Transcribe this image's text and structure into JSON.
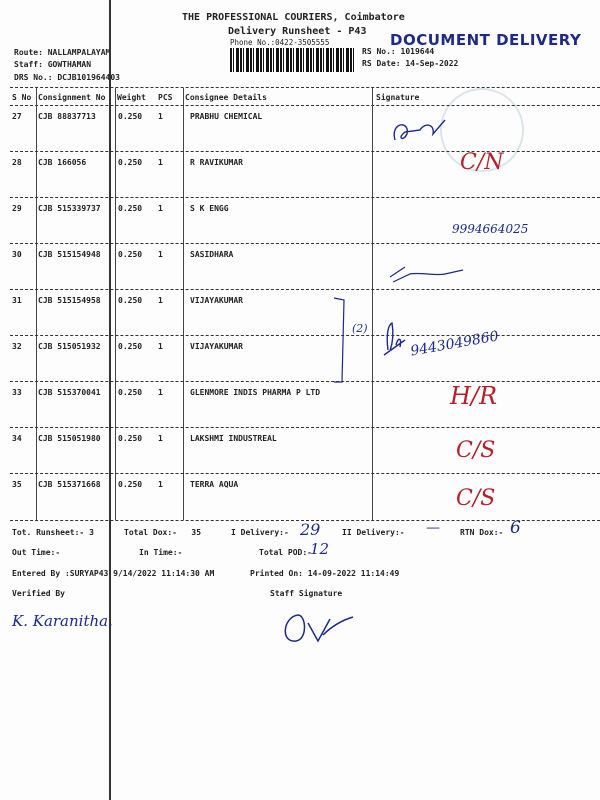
{
  "header": {
    "company": "THE PROFESSIONAL COURIERS, Coimbatore",
    "title": "Delivery Runsheet - P43",
    "phone": "Phone No.:0422-3505555",
    "stamp": "DOCUMENT DELIVERY",
    "rs_no": "RS No.: 1019644",
    "rs_date": "RS Date: 14-Sep-2022",
    "route": "Route: NALLAMPALAYAM",
    "staff": "Staff: GOWTHAMAN",
    "drs_no": "DRS No.: DCJB101964403"
  },
  "columns": [
    "S No",
    "Consignment No",
    "Weight",
    "PCS",
    "Consignee Details",
    "Signature"
  ],
  "rows": [
    {
      "sno": "27",
      "cn": "CJB 88837713",
      "weight": "0.250",
      "pcs": "1",
      "consignee": "PRABHU CHEMICAL",
      "note": ""
    },
    {
      "sno": "28",
      "cn": "CJB 166056",
      "weight": "0.250",
      "pcs": "1",
      "consignee": "R RAVIKUMAR",
      "note": "C/N"
    },
    {
      "sno": "29",
      "cn": "CJB 515339737",
      "weight": "0.250",
      "pcs": "1",
      "consignee": "S K ENGG",
      "note": "9994664025"
    },
    {
      "sno": "30",
      "cn": "CJB 515154948",
      "weight": "0.250",
      "pcs": "1",
      "consignee": "SASIDHARA",
      "note": ""
    },
    {
      "sno": "31",
      "cn": "CJB 515154958",
      "weight": "0.250",
      "pcs": "1",
      "consignee": "VIJAYAKUMAR",
      "note": "(2)"
    },
    {
      "sno": "32",
      "cn": "CJB 515051932",
      "weight": "0.250",
      "pcs": "1",
      "consignee": "VIJAYAKUMAR",
      "note": "9443049860"
    },
    {
      "sno": "33",
      "cn": "CJB 515370041",
      "weight": "0.250",
      "pcs": "1",
      "consignee": "GLENMORE INDIS PHARMA P LTD",
      "note": "H/R"
    },
    {
      "sno": "34",
      "cn": "CJB 515051980",
      "weight": "0.250",
      "pcs": "1",
      "consignee": "LAKSHMI INDUSTREAL",
      "note": "C/S"
    },
    {
      "sno": "35",
      "cn": "CJB 515371668",
      "weight": "0.250",
      "pcs": "1",
      "consignee": "TERRA AQUA",
      "note": "C/S"
    }
  ],
  "footer": {
    "tot_runsheet": "Tot. Runsheet:- 3",
    "total_dox": "Total Dox:-   35",
    "i_delivery": "I Delivery:-",
    "i_delivery_val": "29",
    "ii_delivery": "II Delivery:-",
    "ii_delivery_val": "—",
    "rtn_dox": "RTN Dox:-",
    "rtn_dox_val": "6",
    "out_time": "Out Time:-",
    "in_time": "In Time:-",
    "total_pod": "Total POD:-",
    "total_pod_val": "12",
    "entered_by": "Entered By :SURYAP43 9/14/2022 11:14:30 AM",
    "printed_on": "Printed On: 14-09-2022 11:14:49",
    "verified_by": "Verified By",
    "verifier_sig": "K. Karanitha.",
    "staff_signature": "Staff Signature"
  },
  "colors": {
    "ink_blue": "#1b2a8a",
    "ink_red": "#b3202a"
  }
}
